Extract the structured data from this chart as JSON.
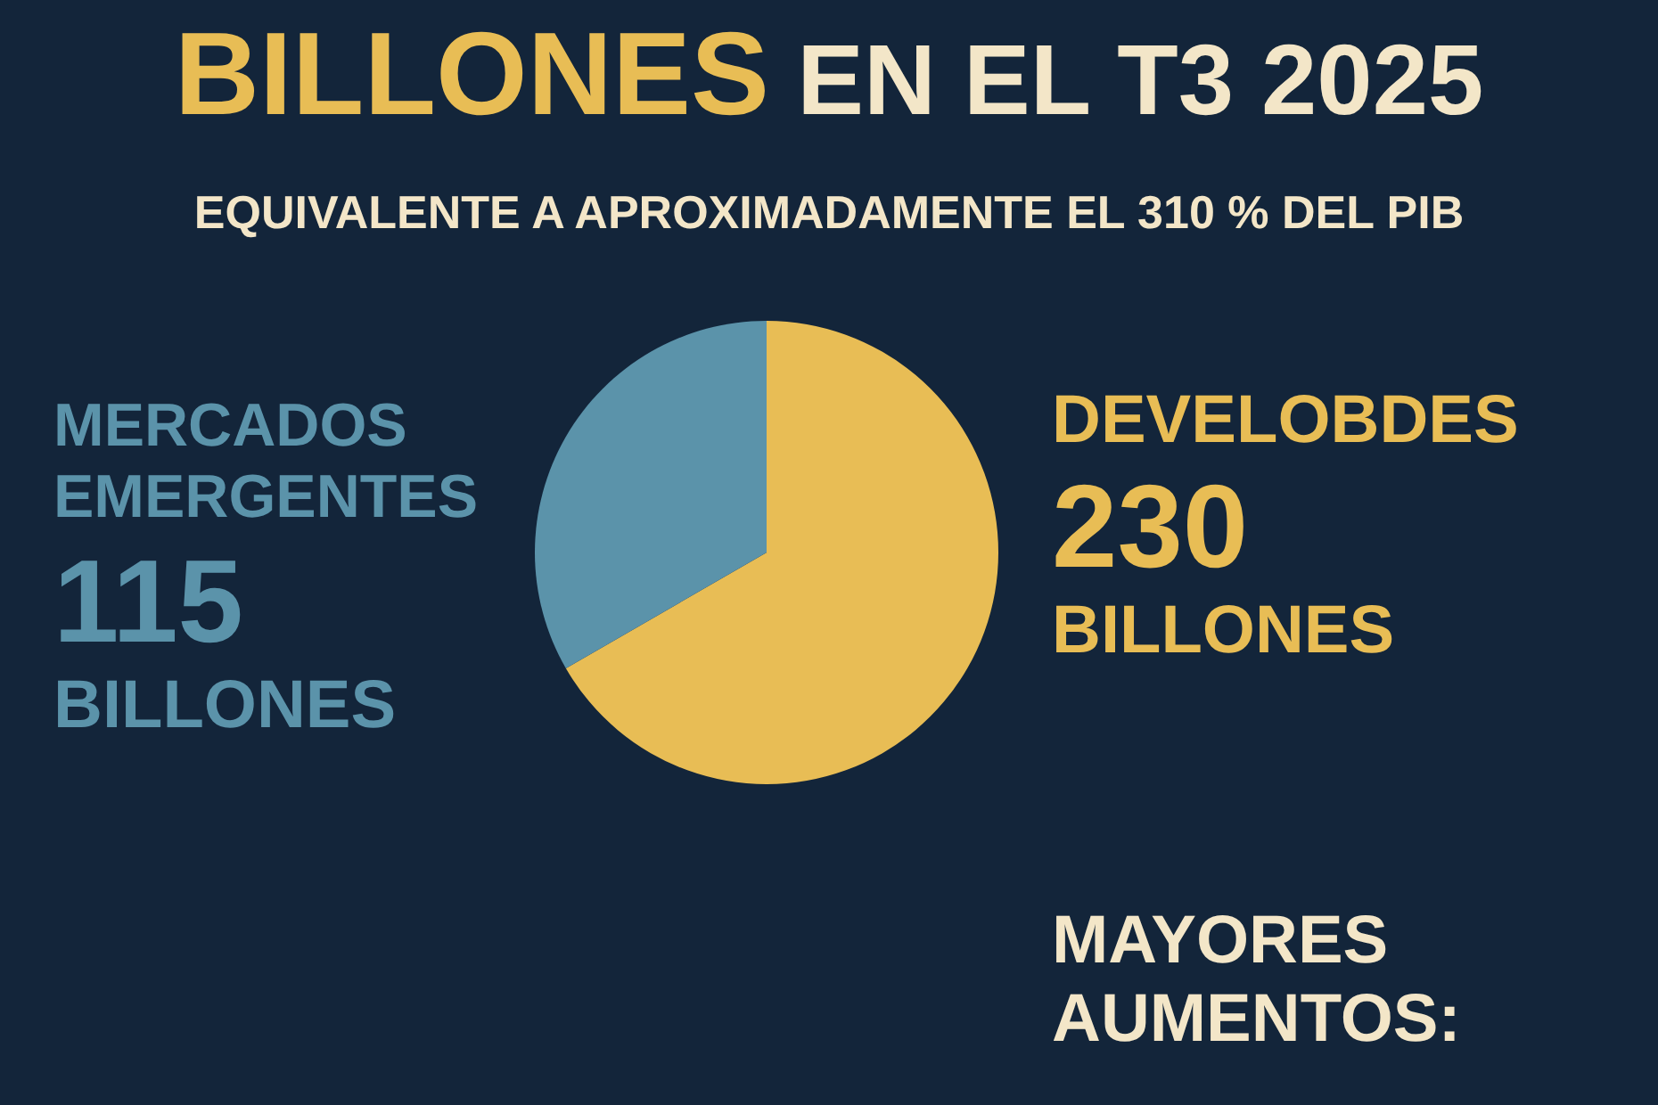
{
  "chart_data": {
    "type": "pie",
    "title": "BILLONES EN EL T3 2025",
    "subtitle": "EQUIVALENTE A APROXIMADAMENTE EL 310 % DEL PIB",
    "categories": [
      "DEVELOBDES",
      "MERCADOS EMERGENTES"
    ],
    "values": [
      230,
      115
    ],
    "colors": [
      "#e8bd55",
      "#5b93aa"
    ],
    "value_labels": [
      "230 BILLONES",
      "115 BILLONES"
    ],
    "annotations": [
      "MAYORES AUMENTOS:"
    ]
  }
}
